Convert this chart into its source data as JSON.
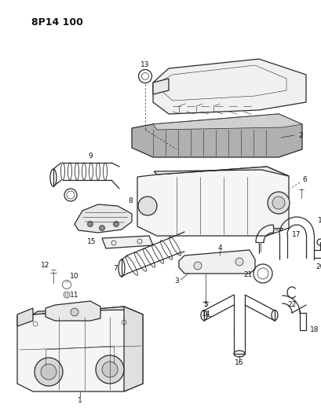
{
  "title": "8P14 100",
  "bg_color": "#ffffff",
  "line_color": "#2a2a2a",
  "label_color": "#111111",
  "title_fontsize": 9,
  "label_fontsize": 6.5
}
